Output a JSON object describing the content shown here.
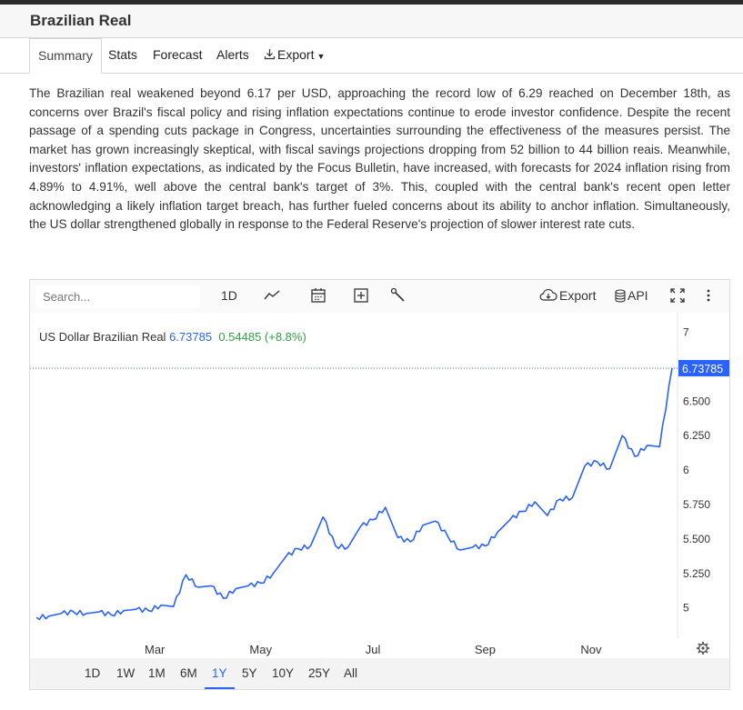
{
  "page": {
    "title": "Brazilian Real"
  },
  "tabs": [
    {
      "label": "Summary",
      "active": true
    },
    {
      "label": "Stats"
    },
    {
      "label": "Forecast"
    },
    {
      "label": "Alerts"
    },
    {
      "label": "Export"
    }
  ],
  "summary": "The Brazilian real weakened beyond 6.17 per USD, approaching the record low of 6.29 reached on December 18th, as concerns over Brazil's fiscal policy and rising inflation expectations continue to erode investor confidence. Despite the recent passage of a spending cuts package in Congress, uncertainties surrounding the effectiveness of the measures persist. The market has grown increasingly skeptical, with fiscal savings projections dropping from 52 billion to 44 billion reais. Meanwhile, investors' inflation expectations, as indicated by the Focus Bulletin, have increased, with forecasts for 2024 inflation rising from 4.89% to 4.91%, well above the central bank's target of 3%. This, coupled with the central bank's recent open letter acknowledging a likely inflation target breach, has further fueled concerns about its ability to anchor inflation. Simultaneously, the US dollar strengthened globally in response to the Federal Reserve's projection of slower interest rate cuts.",
  "toolbar": {
    "search_placeholder": "Search...",
    "interval": "1D",
    "export_label": "Export",
    "api_label": "API"
  },
  "legend": {
    "name": "US Dollar Brazilian Real",
    "last": "6.73785",
    "change": "0.54485 (+8.8%)"
  },
  "ranges": [
    "1D",
    "1W",
    "1M",
    "6M",
    "1Y",
    "5Y",
    "10Y",
    "25Y",
    "All"
  ],
  "active_range": "1Y",
  "colors": {
    "line": "#2962ff",
    "positive": "#2ea043",
    "price_tag": "#2962ff"
  },
  "chart_data": {
    "type": "line",
    "series": [
      {
        "name": "US Dollar Brazilian Real",
        "points": [
          [
            "Jan 24",
            4.93
          ],
          [
            "Jan 30",
            4.94
          ],
          [
            "Feb 05",
            4.96
          ],
          [
            "Feb 12",
            4.97
          ],
          [
            "Feb 20",
            4.96
          ],
          [
            "Feb 27",
            4.97
          ],
          [
            "Mar 05",
            4.95
          ],
          [
            "Mar 12",
            4.98
          ],
          [
            "Mar 19",
            4.99
          ],
          [
            "Mar 26",
            4.98
          ],
          [
            "Apr 02",
            5.02
          ],
          [
            "Apr 09",
            5.01
          ],
          [
            "Apr 16",
            5.24
          ],
          [
            "Apr 23",
            5.15
          ],
          [
            "Apr 30",
            5.16
          ],
          [
            "May 07",
            5.07
          ],
          [
            "May 14",
            5.14
          ],
          [
            "May 21",
            5.16
          ],
          [
            "May 28",
            5.18
          ],
          [
            "Jun 04",
            5.25
          ],
          [
            "Jun 11",
            5.37
          ],
          [
            "Jun 18",
            5.43
          ],
          [
            "Jun 25",
            5.45
          ],
          [
            "Jul 02",
            5.66
          ],
          [
            "Jul 09",
            5.45
          ],
          [
            "Jul 16",
            5.44
          ],
          [
            "Jul 23",
            5.59
          ],
          [
            "Jul 30",
            5.64
          ],
          [
            "Aug 06",
            5.73
          ],
          [
            "Aug 13",
            5.51
          ],
          [
            "Aug 20",
            5.48
          ],
          [
            "Aug 27",
            5.6
          ],
          [
            "Sep 03",
            5.63
          ],
          [
            "Sep 10",
            5.52
          ],
          [
            "Sep 17",
            5.42
          ],
          [
            "Sep 24",
            5.44
          ],
          [
            "Oct 01",
            5.45
          ],
          [
            "Oct 08",
            5.55
          ],
          [
            "Oct 15",
            5.64
          ],
          [
            "Oct 22",
            5.7
          ],
          [
            "Oct 29",
            5.77
          ],
          [
            "Nov 05",
            5.67
          ],
          [
            "Nov 12",
            5.79
          ],
          [
            "Nov 19",
            5.8
          ],
          [
            "Nov 26",
            6.03
          ],
          [
            "Dec 03",
            6.06
          ],
          [
            "Dec 10",
            6.01
          ],
          [
            "Dec 13",
            6.25
          ],
          [
            "Dec 17",
            6.1
          ],
          [
            "Dec 20",
            6.18
          ],
          [
            "Dec 23",
            6.17
          ],
          [
            "Dec 26",
            6.74
          ]
        ]
      }
    ],
    "x_ticks": [
      "Mar",
      "May",
      "Jul",
      "Sep",
      "Nov"
    ],
    "y_ticks": [
      "5",
      "5.250",
      "5.500",
      "5.750",
      "6",
      "6.250",
      "6.500",
      "7"
    ],
    "ylim": [
      4.8,
      7.05
    ],
    "last_value": "6.73785",
    "grid": false
  }
}
